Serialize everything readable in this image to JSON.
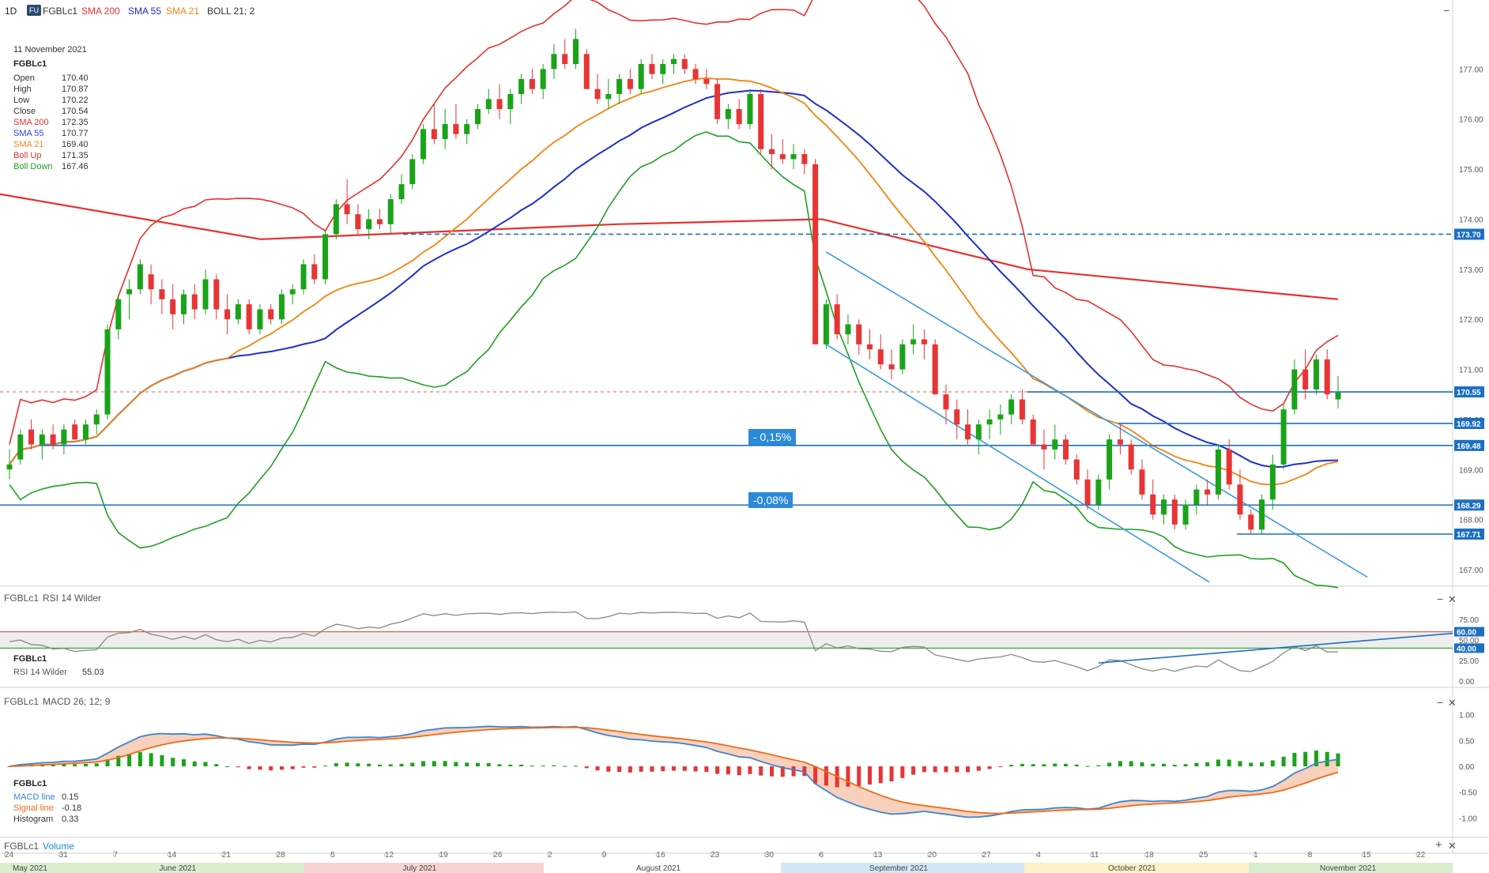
{
  "header": {
    "timeframe": "1D",
    "badge": "FU",
    "symbol": "FGBLc1",
    "sma200_label": "SMA 200",
    "sma55_label": "SMA 55",
    "sma21_label": "SMA 21",
    "boll_label": "BOLL 21; 2",
    "minimize": "−"
  },
  "info": {
    "date": "11 November 2021",
    "symbol": "FGBLc1",
    "rows": [
      {
        "label": "Open",
        "value": "170.40",
        "color": "#333333"
      },
      {
        "label": "High",
        "value": "170.87",
        "color": "#333333"
      },
      {
        "label": "Low",
        "value": "170.22",
        "color": "#333333"
      },
      {
        "label": "Close",
        "value": "170.54",
        "color": "#333333"
      },
      {
        "label": "SMA 200",
        "value": "172.35",
        "color": "#e8302d"
      },
      {
        "label": "SMA 55",
        "value": "170.77",
        "color": "#2a3fd4"
      },
      {
        "label": "SMA 21",
        "value": "169.40",
        "color": "#f08a24"
      },
      {
        "label": "Boll Up",
        "value": "171.35",
        "color": "#e8302d"
      },
      {
        "label": "Boll Down",
        "value": "167.46",
        "color": "#1ea11e"
      }
    ]
  },
  "colors": {
    "up": "#19a319",
    "down": "#e83434",
    "sma200": "#e8302d",
    "sma55": "#1f2fcc",
    "sma21": "#f4820f",
    "boll_up": "#e8302d",
    "boll_down": "#1ea11e",
    "hline": "#1c6fc4",
    "trend": "#3a9ae0",
    "rsi": "#888888",
    "macd": "#3a85d0",
    "signal": "#ee6a1a"
  },
  "annotations": {
    "pct1": "- 0,15%",
    "pct2": "-0,08%"
  },
  "price_tags": [
    "173.70",
    "170.55",
    "169.92",
    "169.48",
    "168.29",
    "167.71"
  ],
  "rsi": {
    "title_symbol": "FGBLc1",
    "title": "RSI 14 Wilder",
    "info_symbol": "FGBLc1",
    "info_label": "RSI 14 Wilder",
    "info_value": "55.03",
    "ticks": [
      "75.00",
      "60.00",
      "50.00",
      "40.00",
      "25.00",
      "0.00"
    ],
    "tags": [
      "60.00",
      "40.00"
    ]
  },
  "macd": {
    "title_symbol": "FGBLc1",
    "title": "MACD 26; 12; 9",
    "info_symbol": "FGBLc1",
    "macd_label": "MACD line",
    "macd_value": "0.15",
    "signal_label": "Signal line",
    "signal_value": "-0.18",
    "hist_label": "Histogram",
    "hist_value": "0.33",
    "ticks": [
      "1.00",
      "0.50",
      "0.00",
      "-0.50",
      "-1.00"
    ]
  },
  "volume": {
    "symbol": "FGBLc1",
    "label": "Volume"
  },
  "controls": {
    "plus": "+",
    "minus": "−",
    "close": "✕"
  },
  "xaxis": {
    "day_labels": [
      "24",
      "31",
      "7",
      "14",
      "21",
      "28",
      "5",
      "12",
      "19",
      "26",
      "2",
      "9",
      "16",
      "23",
      "30",
      "6",
      "13",
      "20",
      "27",
      "4",
      "11",
      "18",
      "25",
      "1",
      "8",
      "15",
      "22"
    ],
    "months": [
      {
        "label": "May 2021",
        "color": "#d8eecf"
      },
      {
        "label": "June 2021",
        "color": "#d8eecf"
      },
      {
        "label": "July 2021",
        "color": "#f6d4d4"
      },
      {
        "label": "August 2021",
        "color": "#ffffff"
      },
      {
        "label": "September 2021",
        "color": "#d3e6f5"
      },
      {
        "label": "October 2021",
        "color": "#fbf2c8"
      },
      {
        "label": "November 2021",
        "color": "#d8eecf"
      }
    ]
  },
  "chart_data": {
    "type": "candlestick",
    "y_ticks": [
      "177.00",
      "176.00",
      "175.00",
      "174.00",
      "173.00",
      "172.00",
      "171.00",
      "170.00",
      "169.00",
      "168.00",
      "167.00"
    ],
    "ylim": [
      166.7,
      178.0
    ],
    "horizontal_levels": [
      173.7,
      170.55,
      169.92,
      169.48,
      168.29,
      167.71
    ],
    "candles": [
      [
        169.0,
        169.4,
        168.8,
        169.1
      ],
      [
        169.2,
        169.8,
        169.1,
        169.7
      ],
      [
        169.8,
        170.0,
        169.4,
        169.5
      ],
      [
        169.5,
        169.8,
        169.2,
        169.7
      ],
      [
        169.7,
        169.9,
        169.4,
        169.5
      ],
      [
        169.5,
        169.9,
        169.3,
        169.8
      ],
      [
        169.9,
        170.0,
        169.6,
        169.6
      ],
      [
        169.6,
        170.0,
        169.5,
        169.9
      ],
      [
        169.9,
        170.2,
        169.7,
        170.1
      ],
      [
        170.1,
        171.9,
        170.0,
        171.8
      ],
      [
        171.8,
        172.5,
        171.6,
        172.4
      ],
      [
        172.5,
        172.8,
        172.0,
        172.6
      ],
      [
        172.6,
        173.2,
        172.5,
        173.1
      ],
      [
        172.9,
        173.1,
        172.3,
        172.6
      ],
      [
        172.6,
        172.8,
        172.1,
        172.4
      ],
      [
        172.4,
        172.7,
        171.8,
        172.1
      ],
      [
        172.1,
        172.6,
        171.9,
        172.5
      ],
      [
        172.5,
        172.7,
        172.0,
        172.2
      ],
      [
        172.2,
        173.0,
        172.1,
        172.8
      ],
      [
        172.8,
        172.9,
        172.0,
        172.2
      ],
      [
        172.2,
        172.5,
        171.7,
        172.0
      ],
      [
        172.0,
        172.4,
        171.9,
        172.3
      ],
      [
        172.3,
        172.4,
        171.7,
        171.8
      ],
      [
        171.8,
        172.3,
        171.7,
        172.2
      ],
      [
        172.2,
        172.3,
        171.9,
        172.0
      ],
      [
        172.0,
        172.6,
        171.9,
        172.5
      ],
      [
        172.5,
        172.7,
        172.3,
        172.6
      ],
      [
        172.6,
        173.2,
        172.5,
        173.1
      ],
      [
        173.1,
        173.3,
        172.7,
        172.8
      ],
      [
        172.8,
        173.8,
        172.7,
        173.7
      ],
      [
        173.7,
        174.4,
        173.6,
        174.3
      ],
      [
        174.3,
        174.8,
        173.9,
        174.1
      ],
      [
        174.1,
        174.3,
        173.7,
        173.8
      ],
      [
        173.8,
        174.2,
        173.6,
        174.0
      ],
      [
        174.0,
        174.2,
        173.8,
        173.9
      ],
      [
        173.9,
        174.5,
        173.7,
        174.4
      ],
      [
        174.4,
        174.9,
        174.3,
        174.7
      ],
      [
        174.7,
        175.3,
        174.6,
        175.2
      ],
      [
        175.2,
        175.9,
        175.1,
        175.8
      ],
      [
        175.8,
        176.3,
        175.5,
        175.6
      ],
      [
        175.6,
        176.2,
        175.4,
        175.9
      ],
      [
        175.9,
        176.3,
        175.6,
        175.7
      ],
      [
        175.7,
        176.0,
        175.5,
        175.9
      ],
      [
        175.9,
        176.3,
        175.8,
        176.2
      ],
      [
        176.2,
        176.6,
        176.1,
        176.4
      ],
      [
        176.4,
        176.7,
        176.0,
        176.2
      ],
      [
        176.2,
        176.6,
        175.9,
        176.5
      ],
      [
        176.5,
        176.9,
        176.3,
        176.8
      ],
      [
        176.8,
        177.0,
        176.5,
        176.6
      ],
      [
        176.6,
        177.1,
        176.4,
        177.0
      ],
      [
        177.0,
        177.5,
        176.8,
        177.3
      ],
      [
        177.3,
        177.6,
        177.0,
        177.1
      ],
      [
        177.1,
        177.8,
        177.0,
        177.6
      ],
      [
        177.3,
        177.4,
        176.6,
        176.6
      ],
      [
        176.6,
        176.9,
        176.3,
        176.4
      ],
      [
        176.4,
        176.8,
        176.2,
        176.5
      ],
      [
        176.5,
        176.9,
        176.3,
        176.8
      ],
      [
        176.8,
        177.0,
        176.5,
        176.6
      ],
      [
        176.6,
        177.2,
        176.5,
        177.1
      ],
      [
        177.1,
        177.3,
        176.8,
        176.9
      ],
      [
        176.9,
        177.2,
        176.7,
        177.1
      ],
      [
        177.1,
        177.3,
        176.9,
        177.2
      ],
      [
        177.2,
        177.3,
        176.9,
        177.0
      ],
      [
        177.0,
        177.1,
        176.7,
        176.8
      ],
      [
        176.8,
        177.0,
        176.6,
        176.7
      ],
      [
        176.7,
        176.8,
        175.9,
        176.0
      ],
      [
        176.0,
        176.3,
        175.8,
        176.2
      ],
      [
        176.2,
        176.4,
        175.8,
        175.9
      ],
      [
        175.9,
        176.6,
        175.8,
        176.5
      ],
      [
        176.5,
        176.6,
        175.3,
        175.4
      ],
      [
        175.4,
        175.7,
        175.0,
        175.3
      ],
      [
        175.3,
        175.6,
        175.1,
        175.2
      ],
      [
        175.2,
        175.5,
        175.0,
        175.3
      ],
      [
        175.3,
        175.4,
        174.9,
        175.1
      ],
      [
        175.1,
        175.2,
        171.5,
        171.5
      ],
      [
        171.5,
        172.4,
        171.4,
        172.3
      ],
      [
        172.3,
        172.5,
        171.6,
        171.7
      ],
      [
        171.7,
        172.1,
        171.5,
        171.9
      ],
      [
        171.9,
        172.0,
        171.3,
        171.5
      ],
      [
        171.5,
        171.8,
        171.2,
        171.4
      ],
      [
        171.4,
        171.7,
        171.0,
        171.1
      ],
      [
        171.1,
        171.4,
        170.8,
        171.0
      ],
      [
        171.0,
        171.6,
        170.9,
        171.5
      ],
      [
        171.5,
        171.9,
        171.3,
        171.6
      ],
      [
        171.6,
        171.8,
        171.2,
        171.5
      ],
      [
        171.5,
        171.6,
        170.5,
        170.5
      ],
      [
        170.5,
        170.7,
        169.9,
        170.2
      ],
      [
        170.2,
        170.4,
        169.6,
        169.9
      ],
      [
        169.9,
        170.2,
        169.5,
        169.6
      ],
      [
        169.6,
        170.0,
        169.3,
        169.9
      ],
      [
        169.9,
        170.2,
        169.6,
        170.0
      ],
      [
        170.0,
        170.3,
        169.7,
        170.1
      ],
      [
        170.1,
        170.5,
        169.9,
        170.4
      ],
      [
        170.4,
        170.6,
        169.9,
        170.0
      ],
      [
        170.0,
        170.1,
        169.5,
        169.5
      ],
      [
        169.5,
        169.8,
        169.0,
        169.4
      ],
      [
        169.4,
        169.9,
        169.2,
        169.6
      ],
      [
        169.6,
        169.7,
        169.1,
        169.2
      ],
      [
        169.2,
        169.3,
        168.7,
        168.8
      ],
      [
        168.8,
        169.0,
        168.2,
        168.3
      ],
      [
        168.3,
        168.9,
        168.2,
        168.8
      ],
      [
        168.8,
        169.7,
        168.6,
        169.6
      ],
      [
        169.6,
        169.9,
        169.3,
        169.5
      ],
      [
        169.5,
        169.6,
        168.9,
        169.0
      ],
      [
        169.0,
        169.2,
        168.4,
        168.5
      ],
      [
        168.5,
        168.8,
        168.0,
        168.1
      ],
      [
        168.1,
        168.5,
        167.9,
        168.4
      ],
      [
        168.4,
        168.5,
        167.8,
        167.9
      ],
      [
        167.9,
        168.4,
        167.8,
        168.3
      ],
      [
        168.3,
        168.7,
        168.1,
        168.6
      ],
      [
        168.6,
        168.8,
        168.3,
        168.5
      ],
      [
        168.5,
        169.5,
        168.4,
        169.4
      ],
      [
        169.4,
        169.6,
        168.6,
        168.7
      ],
      [
        168.7,
        169.0,
        168.0,
        168.1
      ],
      [
        168.1,
        168.2,
        167.7,
        167.8
      ],
      [
        167.8,
        168.5,
        167.7,
        168.4
      ],
      [
        168.4,
        169.3,
        168.2,
        169.1
      ],
      [
        169.1,
        170.3,
        169.0,
        170.2
      ],
      [
        170.2,
        171.2,
        170.1,
        171.0
      ],
      [
        171.0,
        171.4,
        170.4,
        170.6
      ],
      [
        170.6,
        171.3,
        170.5,
        171.2
      ],
      [
        171.2,
        171.4,
        170.4,
        170.5
      ],
      [
        170.4,
        170.87,
        170.22,
        170.54
      ]
    ],
    "sma200": [
      174.5,
      173.6,
      173.9,
      174.0,
      173.0,
      172.4
    ],
    "macd_legend": {
      "macd": 0.15,
      "signal": -0.18,
      "histogram": 0.33
    },
    "rsi_value": 55.03
  }
}
